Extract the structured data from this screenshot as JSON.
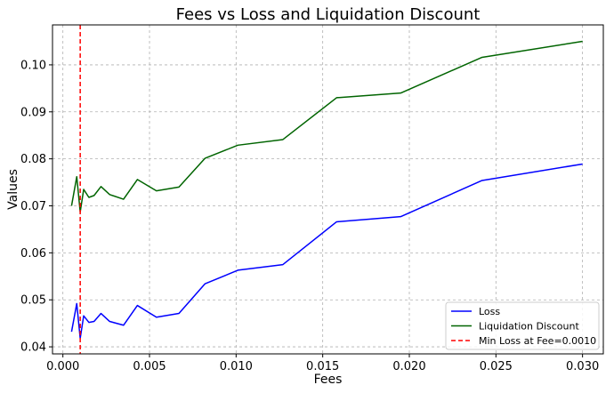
{
  "chart_data": {
    "type": "line",
    "title": "Fees vs Loss and Liquidation Discount",
    "xlabel": "Fees",
    "ylabel": "Values",
    "xlim": [
      -0.0006,
      0.0312
    ],
    "ylim": [
      0.0385,
      0.1085
    ],
    "xticks": [
      0.0,
      0.005,
      0.01,
      0.015,
      0.02,
      0.025,
      0.03
    ],
    "xtick_labels": [
      "0.000",
      "0.005",
      "0.010",
      "0.015",
      "0.020",
      "0.025",
      "0.030"
    ],
    "yticks": [
      0.04,
      0.05,
      0.06,
      0.07,
      0.08,
      0.09,
      0.1
    ],
    "ytick_labels": [
      "0.04",
      "0.05",
      "0.06",
      "0.07",
      "0.08",
      "0.09",
      "0.10"
    ],
    "grid": true,
    "legend_position": "lower-right",
    "series": [
      {
        "name": "Loss",
        "color": "#0000ff",
        "style": "solid",
        "x": [
          0.0005,
          0.0008,
          0.001,
          0.0012,
          0.0015,
          0.0018,
          0.0022,
          0.0027,
          0.0035,
          0.0043,
          0.0054,
          0.0067,
          0.0082,
          0.0101,
          0.0127,
          0.0158,
          0.0195,
          0.0242,
          0.03
        ],
        "y": [
          0.0432,
          0.0492,
          0.0418,
          0.0466,
          0.0452,
          0.0454,
          0.0471,
          0.0454,
          0.0446,
          0.0488,
          0.0463,
          0.0471,
          0.0534,
          0.0563,
          0.0575,
          0.0666,
          0.0677,
          0.0754,
          0.0789
        ]
      },
      {
        "name": "Liquidation Discount",
        "color": "#006400",
        "style": "solid",
        "x": [
          0.0005,
          0.0008,
          0.001,
          0.0012,
          0.0015,
          0.0018,
          0.0022,
          0.0027,
          0.0035,
          0.0043,
          0.0054,
          0.0067,
          0.0082,
          0.0101,
          0.0127,
          0.0158,
          0.0195,
          0.0242,
          0.03
        ],
        "y": [
          0.07,
          0.0762,
          0.0687,
          0.0735,
          0.0718,
          0.0722,
          0.0741,
          0.0724,
          0.0714,
          0.0756,
          0.0732,
          0.074,
          0.0801,
          0.0829,
          0.0841,
          0.093,
          0.094,
          0.1016,
          0.105
        ]
      }
    ],
    "vline": {
      "name": "Min Loss at Fee=0.0010",
      "x": 0.001,
      "color": "#ff0000",
      "style": "dashed"
    }
  }
}
